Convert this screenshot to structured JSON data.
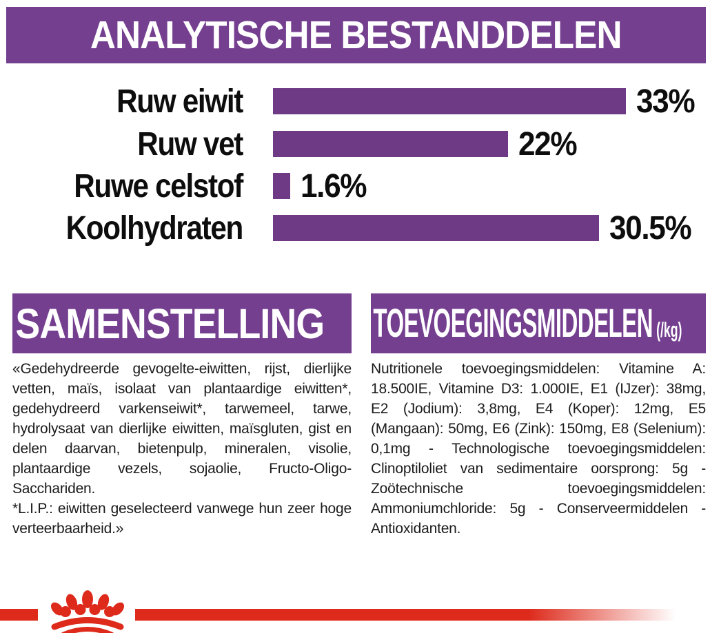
{
  "header": {
    "title": "ANALYTISCHE BESTANDDELEN"
  },
  "chart_data": {
    "type": "bar",
    "orientation": "horizontal",
    "title": "ANALYTISCHE BESTANDDELEN",
    "categories": [
      "Ruw eiwit",
      "Ruw vet",
      "Ruwe celstof",
      "Koolhydraten"
    ],
    "values": [
      33,
      22,
      1.6,
      30.5
    ],
    "value_labels": [
      "33%",
      "22%",
      "1.6%",
      "30.5%"
    ],
    "xlim": [
      0,
      33
    ],
    "grid": false,
    "bar_color": "#6E3A86"
  },
  "sections": {
    "samenstelling": {
      "title": "SAMENSTELLING",
      "paragraphs": [
        "«Gedehydreerde gevogelte-eiwitten, rijst, dierlijke vetten, maïs, isolaat van plantaardige eiwitten*, gedehydreerd varkenseiwit*, tarwemeel, tarwe, hydrolysaat van dierlijke eiwitten, maïsgluten, gist en delen daarvan, bietenpulp, mineralen, visolie, plantaardige vezels, sojaolie, Fructo-Oligo-Sacchariden.",
        "*L.I.P.: eiwitten geselecteerd vanwege hun zeer hoge verteerbaarheid.»"
      ]
    },
    "toevoegingsmiddelen": {
      "title": "TOEVOEGINGSMIDDELEN",
      "unit": "(/kg)",
      "body": "Nutritionele toevoegingsmiddelen: Vitamine A: 18.500IE, Vitamine D3: 1.000IE, E1 (IJzer): 38mg, E2 (Jodium): 3,8mg, E4 (Koper): 12mg, E5 (Mangaan): 50mg, E6 (Zink): 150mg, E8 (Selenium): 0,1mg - Technologische toevoegingsmiddelen: Clinoptiloliet van sedimentaire oorsprong: 5g - Zoötechnische toevoegingsmiddelen: Ammoniumchloride: 5g - Conserveermiddelen - Antioxidanten."
    }
  },
  "footer": {
    "logo": "royal-canin-crown-paw-logo"
  },
  "colors": {
    "purple_banner": "#753F90",
    "purple_bar": "#6E3A86",
    "red": "#DD2A1B",
    "text": "#1B1B1B"
  }
}
